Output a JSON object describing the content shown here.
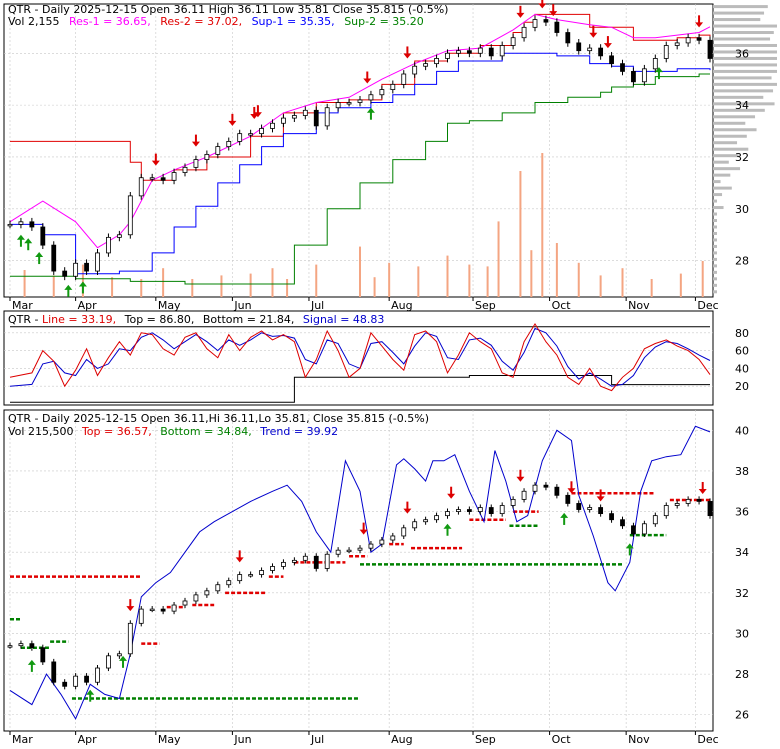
{
  "colors": {
    "background": "#ffffff",
    "frame": "#000000",
    "grid": "#c8c8c8",
    "resistance": "#e00000",
    "support": "#008000",
    "resistance_2": "#ff00ff",
    "support_2": "#0000ff",
    "volume": "#f4a582",
    "volume_profile": "#bbbbbb",
    "down_arrow": "#dd0000",
    "up_arrow": "#119911",
    "stoch_line": "#dd0000",
    "stoch_signal": "#0000cc",
    "stoch_band": "#000000"
  },
  "chart_data": [
    {
      "type": "line",
      "legend": {
        "line1_prefix": "QTR - Daily 2025-12-15 Open 36.11   High 36.11   Low 35.81   Close 35.815 (-0.5%)",
        "line2_vol": "Vol 2,155",
        "res1": "Res-1 = 36.65,",
        "res2": "Res-2 = 37.02,",
        "sup1": "Sup-1 = 35.35,",
        "sup2": "Sup-2 = 35.20"
      },
      "x_tick_labels": [
        "Mar",
        "Apr",
        "May",
        "Jun",
        "Jul",
        "Aug",
        "Sep",
        "Oct",
        "Nov",
        "Dec"
      ],
      "y_tick_labels": [
        "28",
        "30",
        "32",
        "34",
        "36"
      ],
      "ylim": [
        26.6,
        37.9
      ],
      "price": {
        "x": [
          0,
          3,
          6,
          9,
          12,
          15,
          18,
          21,
          24,
          27,
          30,
          33,
          36,
          39,
          42,
          45,
          48,
          51,
          54,
          57,
          60,
          63,
          66,
          69,
          72,
          75,
          78,
          81,
          84,
          87,
          90,
          93,
          96,
          99,
          102,
          105,
          108,
          111,
          114,
          117,
          120,
          123,
          126,
          129,
          132,
          135,
          138,
          141,
          144,
          147,
          150,
          153,
          156,
          159,
          162,
          165,
          168,
          171,
          174,
          177,
          180,
          183,
          186,
          189,
          192
        ],
        "y": [
          29.4,
          29.5,
          29.3,
          28.6,
          27.6,
          27.4,
          27.9,
          27.6,
          28.3,
          28.9,
          29.0,
          30.5,
          31.2,
          31.2,
          31.1,
          31.4,
          31.6,
          31.9,
          32.1,
          32.4,
          32.6,
          32.9,
          32.9,
          33.1,
          33.3,
          33.5,
          33.6,
          33.8,
          33.2,
          33.9,
          34.1,
          34.1,
          34.2,
          34.4,
          34.6,
          34.8,
          35.2,
          35.5,
          35.6,
          35.8,
          36.0,
          36.1,
          36.0,
          36.2,
          35.9,
          36.3,
          36.6,
          37.0,
          37.3,
          37.2,
          36.8,
          36.4,
          36.1,
          36.2,
          35.9,
          35.6,
          35.3,
          34.9,
          35.4,
          35.8,
          36.3,
          36.4,
          36.6,
          36.5,
          35.8
        ]
      },
      "res1_line": {
        "x": [
          0,
          30,
          33,
          36,
          45,
          54,
          66,
          75,
          84,
          93,
          102,
          111,
          120,
          129,
          138,
          141,
          144,
          150,
          159,
          165,
          171,
          177,
          183,
          189,
          192
        ],
        "y": [
          32.6,
          32.6,
          31.8,
          31.1,
          31.5,
          32.0,
          32.8,
          33.7,
          34.1,
          34.2,
          34.8,
          35.7,
          36.0,
          36.3,
          36.8,
          37.2,
          37.5,
          37.5,
          37.0,
          37.0,
          36.5,
          36.5,
          36.6,
          36.7,
          36.65
        ]
      },
      "res2_line": {
        "x": [
          0,
          9,
          18,
          24,
          30,
          33,
          39,
          45,
          54,
          66,
          75,
          84,
          93,
          102,
          111,
          120,
          129,
          138,
          144,
          150,
          159,
          165,
          171,
          177,
          183,
          189,
          192
        ],
        "y": [
          29.5,
          30.3,
          29.5,
          28.5,
          29.0,
          29.5,
          31.1,
          31.5,
          32.0,
          32.8,
          33.7,
          34.1,
          34.3,
          35.0,
          35.6,
          36.1,
          36.2,
          36.9,
          37.5,
          37.3,
          37.1,
          37.0,
          36.6,
          36.6,
          36.7,
          36.8,
          37.02
        ]
      },
      "sup1_line": {
        "x": [
          0,
          9,
          18,
          24,
          30,
          39,
          45,
          51,
          57,
          63,
          69,
          75,
          84,
          90,
          99,
          105,
          111,
          117,
          123,
          129,
          135,
          138,
          144,
          150,
          159,
          165,
          171,
          177,
          183,
          192
        ],
        "y": [
          29.4,
          29.0,
          27.5,
          27.5,
          27.6,
          28.3,
          29.3,
          30.1,
          31.0,
          31.7,
          32.4,
          32.9,
          33.7,
          33.9,
          34.1,
          34.4,
          34.8,
          35.3,
          35.7,
          35.7,
          36.0,
          36.0,
          36.0,
          35.9,
          35.6,
          35.5,
          35.3,
          35.3,
          35.4,
          35.35
        ]
      },
      "sup2_line": {
        "x": [
          0,
          18,
          33,
          48,
          66,
          75,
          78,
          87,
          96,
          105,
          114,
          120,
          126,
          135,
          144,
          153,
          162,
          165,
          171,
          177,
          183,
          189,
          192
        ],
        "y": [
          27.4,
          27.3,
          27.2,
          27.1,
          27.1,
          27.1,
          28.6,
          30.0,
          31.0,
          31.9,
          32.6,
          33.3,
          33.4,
          33.7,
          34.1,
          34.3,
          34.5,
          34.7,
          34.8,
          35.1,
          35.1,
          35.2,
          35.2
        ]
      },
      "volume": {
        "x": [
          4,
          12,
          20,
          28,
          36,
          42,
          50,
          58,
          66,
          72,
          76,
          84,
          96,
          100,
          104,
          112,
          120,
          126,
          131,
          134,
          140,
          143,
          146,
          150,
          156,
          162,
          168,
          176,
          184,
          190
        ],
        "y": [
          1.5,
          1.2,
          1.8,
          1.1,
          1.0,
          1.6,
          1.0,
          1.2,
          1.3,
          1.6,
          1.0,
          1.8,
          2.8,
          1.1,
          1.9,
          1.7,
          2.3,
          1.8,
          1.7,
          4.2,
          7.0,
          2.6,
          8.0,
          3.0,
          1.9,
          1.2,
          1.6,
          1.0,
          1.3,
          2.0
        ]
      },
      "down_arrows_x": [
        40,
        51,
        61,
        67,
        68,
        98,
        109,
        140,
        146,
        149,
        160,
        164,
        189
      ],
      "up_arrows_x": [
        3,
        5,
        8,
        16,
        20,
        99,
        178
      ]
    },
    {
      "type": "line",
      "legend": {
        "prefix": "QTR - ",
        "line_label": "Line = 33.19,",
        "top_label": "Top = 86.80,",
        "bottom_label": "Bottom = 21.84,",
        "signal_label": "Signal = 48.83"
      },
      "y_tick_labels": [
        "20",
        "40",
        "60",
        "80"
      ],
      "ylim": [
        0,
        100
      ],
      "line": {
        "x": [
          0,
          6,
          9,
          12,
          15,
          18,
          21,
          24,
          27,
          30,
          33,
          36,
          39,
          42,
          45,
          48,
          51,
          54,
          57,
          60,
          63,
          66,
          69,
          72,
          75,
          78,
          81,
          84,
          87,
          90,
          93,
          96,
          99,
          102,
          105,
          108,
          111,
          114,
          117,
          120,
          123,
          126,
          129,
          132,
          135,
          138,
          141,
          144,
          147,
          150,
          153,
          156,
          159,
          162,
          165,
          168,
          171,
          174,
          177,
          180,
          183,
          186,
          189,
          192
        ],
        "y": [
          30,
          35,
          60,
          48,
          20,
          38,
          62,
          32,
          52,
          70,
          55,
          80,
          78,
          62,
          55,
          75,
          80,
          62,
          52,
          78,
          60,
          75,
          82,
          72,
          78,
          70,
          30,
          50,
          82,
          60,
          30,
          40,
          80,
          65,
          50,
          38,
          78,
          82,
          70,
          35,
          55,
          80,
          70,
          62,
          35,
          30,
          70,
          90,
          70,
          55,
          30,
          22,
          40,
          20,
          15,
          30,
          40,
          62,
          68,
          72,
          65,
          60,
          50,
          33
        ]
      },
      "signal": {
        "x": [
          0,
          6,
          9,
          12,
          15,
          18,
          21,
          24,
          27,
          30,
          33,
          36,
          39,
          42,
          45,
          48,
          51,
          54,
          57,
          60,
          63,
          66,
          69,
          72,
          75,
          78,
          81,
          84,
          87,
          90,
          93,
          96,
          99,
          102,
          105,
          108,
          111,
          114,
          117,
          120,
          123,
          126,
          129,
          132,
          135,
          138,
          141,
          144,
          147,
          150,
          153,
          156,
          159,
          162,
          165,
          168,
          171,
          174,
          177,
          180,
          183,
          186,
          189,
          192
        ],
        "y": [
          20,
          22,
          45,
          48,
          35,
          32,
          50,
          40,
          45,
          62,
          60,
          75,
          80,
          72,
          62,
          70,
          78,
          70,
          60,
          72,
          66,
          72,
          80,
          76,
          77,
          74,
          50,
          45,
          72,
          68,
          45,
          40,
          68,
          70,
          58,
          45,
          65,
          80,
          76,
          52,
          50,
          72,
          74,
          66,
          48,
          38,
          58,
          85,
          80,
          65,
          42,
          28,
          35,
          28,
          20,
          22,
          32,
          52,
          64,
          70,
          68,
          62,
          55,
          48.83
        ]
      },
      "top_band": {
        "x": [
          0,
          192
        ],
        "y": [
          86.8,
          86.8
        ]
      },
      "bottom_band": {
        "x": [
          0,
          74,
          78,
          125,
          126,
          162,
          165,
          192
        ],
        "y": [
          2,
          2,
          30,
          30,
          32,
          32,
          21.84,
          21.84
        ]
      }
    },
    {
      "type": "line",
      "legend": {
        "line1": "QTR - Daily 2025-12-15 Open 36.11,Hi 36.11,Lo 35.81, Close 35.815 (-0.5%)",
        "vol": "Vol 215,500",
        "top": "Top = 36.57,",
        "bottom": "Bottom = 34.84,",
        "trend": "Trend = 39.92"
      },
      "y_tick_labels": [
        "26",
        "28",
        "30",
        "32",
        "34",
        "36",
        "38",
        "40"
      ],
      "ylim": [
        25.2,
        41.0
      ],
      "price": {
        "x": [
          0,
          3,
          6,
          9,
          12,
          15,
          18,
          21,
          24,
          27,
          30,
          33,
          36,
          39,
          42,
          45,
          48,
          51,
          54,
          57,
          60,
          63,
          66,
          69,
          72,
          75,
          78,
          81,
          84,
          87,
          90,
          93,
          96,
          99,
          102,
          105,
          108,
          111,
          114,
          117,
          120,
          123,
          126,
          129,
          132,
          135,
          138,
          141,
          144,
          147,
          150,
          153,
          156,
          159,
          162,
          165,
          168,
          171,
          174,
          177,
          180,
          183,
          186,
          189,
          192
        ],
        "y": [
          29.4,
          29.5,
          29.3,
          28.6,
          27.6,
          27.4,
          27.9,
          27.6,
          28.3,
          28.9,
          29.0,
          30.5,
          31.2,
          31.2,
          31.1,
          31.4,
          31.6,
          31.9,
          32.1,
          32.4,
          32.6,
          32.9,
          32.9,
          33.1,
          33.3,
          33.5,
          33.6,
          33.8,
          33.2,
          33.9,
          34.1,
          34.1,
          34.2,
          34.4,
          34.6,
          34.8,
          35.2,
          35.5,
          35.6,
          35.8,
          36.0,
          36.1,
          36.0,
          36.2,
          35.9,
          36.3,
          36.6,
          37.0,
          37.3,
          37.2,
          36.8,
          36.4,
          36.1,
          36.2,
          35.9,
          35.6,
          35.3,
          34.9,
          35.4,
          35.8,
          36.3,
          36.4,
          36.6,
          36.5,
          35.8
        ]
      },
      "trend": {
        "x": [
          0,
          6,
          10,
          14,
          18,
          22,
          26,
          30,
          33,
          36,
          40,
          44,
          48,
          52,
          56,
          60,
          66,
          72,
          76,
          80,
          84,
          88,
          92,
          96,
          99,
          102,
          106,
          108,
          111,
          114,
          116,
          119,
          122,
          126,
          130,
          133,
          136,
          139,
          142,
          146,
          150,
          154,
          156,
          160,
          164,
          166,
          170,
          173,
          176,
          180,
          184,
          188,
          192
        ],
        "y": [
          27.2,
          26.5,
          28.0,
          27.0,
          25.8,
          27.5,
          27.0,
          26.8,
          29.0,
          31.8,
          32.5,
          33.0,
          34.0,
          35.0,
          35.5,
          35.9,
          36.5,
          37.0,
          37.3,
          36.5,
          35.0,
          34.0,
          38.5,
          37.0,
          34.0,
          34.4,
          38.3,
          38.6,
          38.1,
          37.5,
          38.5,
          38.5,
          38.8,
          37.0,
          35.5,
          39.0,
          37.5,
          35.5,
          35.8,
          38.5,
          40.0,
          39.5,
          36.8,
          34.8,
          32.5,
          32.1,
          33.5,
          37.0,
          38.5,
          38.7,
          38.8,
          40.2,
          39.92
        ]
      },
      "red_segments": [
        {
          "x0": 0,
          "x1": 36,
          "y": 32.8
        },
        {
          "x0": 36,
          "x1": 41,
          "y": 29.5
        },
        {
          "x0": 43,
          "x1": 48,
          "y": 31.3
        },
        {
          "x0": 50,
          "x1": 56,
          "y": 31.4
        },
        {
          "x0": 59,
          "x1": 70,
          "y": 32.0
        },
        {
          "x0": 71,
          "x1": 75,
          "y": 32.8
        },
        {
          "x0": 78,
          "x1": 92,
          "y": 33.5
        },
        {
          "x0": 93,
          "x1": 98,
          "y": 33.8
        },
        {
          "x0": 104,
          "x1": 108,
          "y": 34.4
        },
        {
          "x0": 110,
          "x1": 124,
          "y": 34.2
        },
        {
          "x0": 126,
          "x1": 136,
          "y": 35.6
        },
        {
          "x0": 138,
          "x1": 145,
          "y": 36.0
        },
        {
          "x0": 154,
          "x1": 177,
          "y": 36.9
        },
        {
          "x0": 181,
          "x1": 192,
          "y": 36.57
        }
      ],
      "green_segments": [
        {
          "x0": 0,
          "x1": 3,
          "y": 30.7
        },
        {
          "x0": 3,
          "x1": 11,
          "y": 29.3
        },
        {
          "x0": 11,
          "x1": 16,
          "y": 29.6
        },
        {
          "x0": 17,
          "x1": 96,
          "y": 26.8
        },
        {
          "x0": 96,
          "x1": 168,
          "y": 33.4
        },
        {
          "x0": 137,
          "x1": 145,
          "y": 35.3
        },
        {
          "x0": 170,
          "x1": 180,
          "y": 34.84
        }
      ],
      "down_arrows_x": [
        33,
        63,
        97,
        109,
        121,
        140,
        154,
        162,
        190
      ],
      "up_arrows_x": [
        6,
        22,
        31,
        120,
        152,
        170
      ]
    }
  ]
}
